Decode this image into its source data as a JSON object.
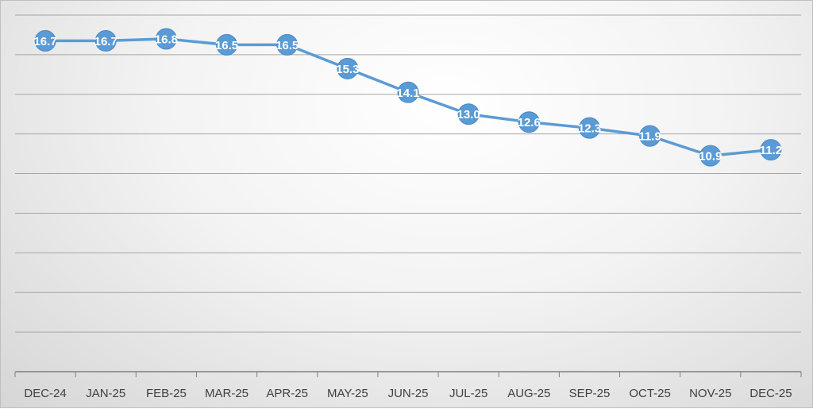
{
  "chart_data": {
    "type": "line",
    "title": "",
    "xlabel": "",
    "ylabel": "",
    "categories": [
      "DEC-24",
      "JAN-25",
      "FEB-25",
      "MAR-25",
      "APR-25",
      "MAY-25",
      "JUN-25",
      "JUL-25",
      "AUG-25",
      "SEP-25",
      "OCT-25",
      "NOV-25",
      "DEC-25"
    ],
    "series": [
      {
        "values": [
          16.7,
          16.7,
          16.8,
          16.5,
          16.5,
          15.3,
          14.1,
          13.0,
          12.6,
          12.3,
          11.9,
          10.9,
          11.2
        ],
        "labels": [
          "16.7",
          "16.7",
          "16.8",
          "16.5",
          "16.5",
          "15.3",
          "14.1",
          "13.0",
          "12.6",
          "12.3",
          "11.9",
          "10.9",
          "11.2"
        ],
        "color": "#5b9bd5"
      }
    ],
    "ylim": [
      0,
      18
    ],
    "y_gridline_step": 2,
    "y_tick_labels_shown": false,
    "grid": true,
    "legend": "none",
    "data_labels": "center"
  }
}
